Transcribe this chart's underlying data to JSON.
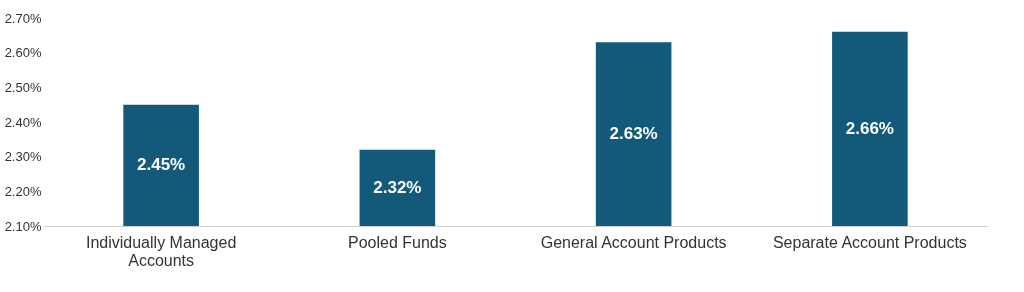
{
  "chart_data": {
    "type": "bar",
    "categories": [
      "Individually Managed Accounts",
      "Pooled Funds",
      "General Account Products",
      "Separate Account Products"
    ],
    "values": [
      2.45,
      2.32,
      2.63,
      2.66
    ],
    "value_labels": [
      "2.45%",
      "2.32%",
      "2.63%",
      "2.66%"
    ],
    "color": "#135a7a",
    "ylim": [
      2.1,
      2.7
    ],
    "yticks": [
      {
        "value": 2.1,
        "label": "2.10%"
      },
      {
        "value": 2.2,
        "label": "2.20%"
      },
      {
        "value": 2.3,
        "label": "2.30%"
      },
      {
        "value": 2.4,
        "label": "2.40%"
      },
      {
        "value": 2.5,
        "label": "2.50%"
      },
      {
        "value": 2.6,
        "label": "2.60%"
      },
      {
        "value": 2.7,
        "label": "2.70%"
      }
    ],
    "grid": false
  }
}
